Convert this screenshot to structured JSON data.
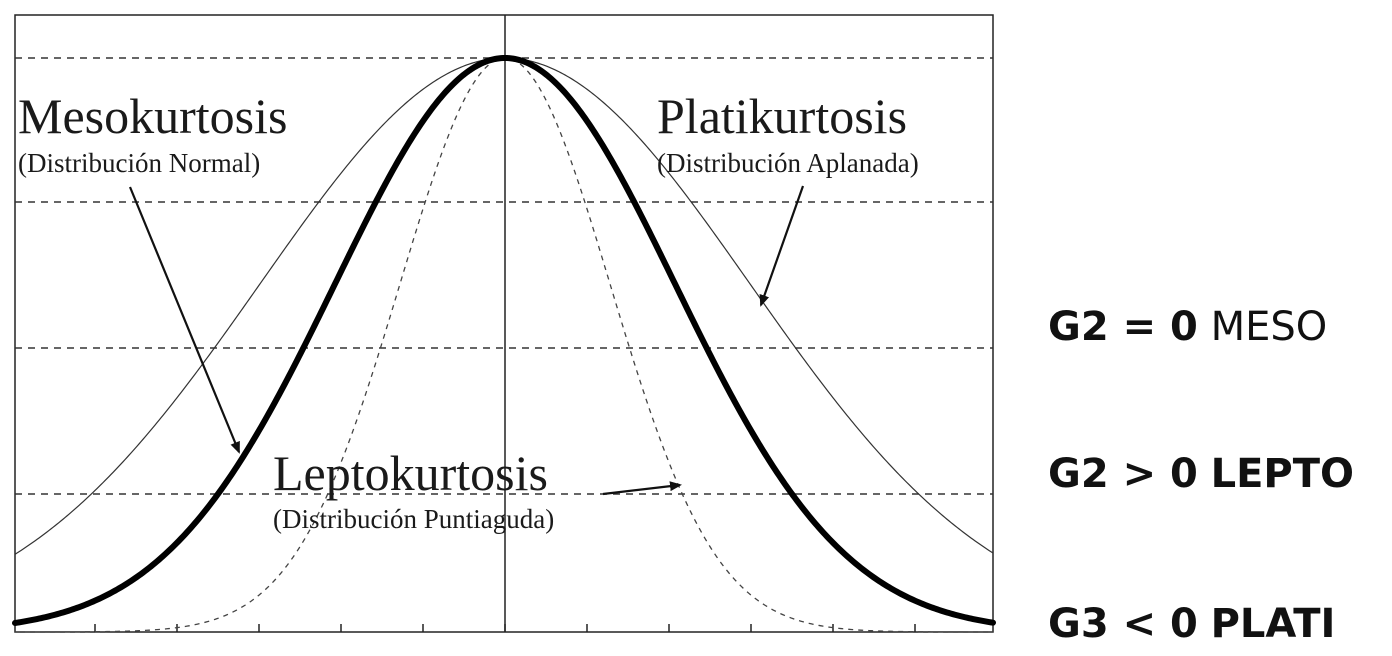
{
  "diagram": {
    "curves": [
      {
        "name": "meso",
        "title": "Mesokurtosis",
        "subtitle": "(Distribución Normal)"
      },
      {
        "name": "platy",
        "title": "Platikurtosis",
        "subtitle": "(Distribución Aplanada)"
      },
      {
        "name": "lepto",
        "title": "Leptokurtosis",
        "subtitle": "(Distribución Puntiaguda)"
      }
    ]
  },
  "legend": [
    {
      "expr": "G2 = 0",
      "label": "MESO",
      "label_bold": false
    },
    {
      "expr": "G2 > 0",
      "label": "LEPTO",
      "label_bold": true
    },
    {
      "expr": "G3 < 0",
      "label": "PLATI",
      "label_bold": true
    }
  ]
}
